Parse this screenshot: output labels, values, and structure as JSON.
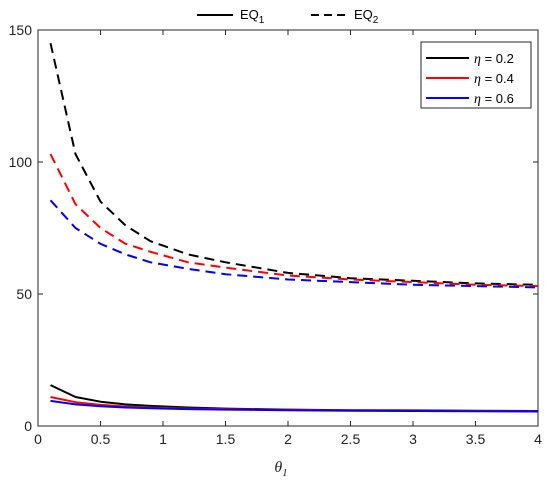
{
  "chart_data": {
    "type": "line",
    "title": "",
    "xlabel": "θ1",
    "xlabel_main": "θ",
    "xlabel_sub": "1",
    "ylabel": "",
    "xlim": [
      0,
      4
    ],
    "ylim": [
      0,
      150
    ],
    "xticks": [
      "0",
      "0.5",
      "1",
      "1.5",
      "2",
      "2.5",
      "3",
      "3.5",
      "4"
    ],
    "yticks": [
      "0",
      "50",
      "100",
      "150"
    ],
    "grid": false,
    "x": [
      0.1,
      0.3,
      0.5,
      0.7,
      0.9,
      1.2,
      1.5,
      2.0,
      2.5,
      3.0,
      3.5,
      4.0
    ],
    "line_styles": [
      {
        "name": "EQ1",
        "main": "EQ",
        "sub": "1",
        "dash": "solid"
      },
      {
        "name": "EQ2",
        "main": "EQ",
        "sub": "2",
        "dash": "dashed"
      }
    ],
    "line_style_legend_position": "top-center",
    "eta_legend": [
      {
        "prefix": "η",
        "label": " = 0.2",
        "color": "#000000"
      },
      {
        "prefix": "η",
        "label": " = 0.4",
        "color": "#ff0000"
      },
      {
        "prefix": "η",
        "label": " = 0.6",
        "color": "#0000ff"
      }
    ],
    "eta_legend_position": "top-right",
    "series": [
      {
        "name": "η = 0.2, EQ1",
        "color": "#000000",
        "dash": "solid",
        "values": [
          15.5,
          11.0,
          9.2,
          8.2,
          7.6,
          7.0,
          6.6,
          6.2,
          6.0,
          5.9,
          5.8,
          5.7
        ]
      },
      {
        "name": "η = 0.4, EQ1",
        "color": "#ff0000",
        "dash": "solid",
        "values": [
          11.0,
          9.0,
          8.0,
          7.4,
          7.0,
          6.6,
          6.4,
          6.1,
          5.9,
          5.8,
          5.7,
          5.6
        ]
      },
      {
        "name": "η = 0.6, EQ1",
        "color": "#0000ff",
        "dash": "solid",
        "values": [
          9.5,
          8.2,
          7.5,
          7.0,
          6.7,
          6.4,
          6.2,
          6.0,
          5.8,
          5.7,
          5.6,
          5.5
        ]
      },
      {
        "name": "η = 0.2, EQ2",
        "color": "#000000",
        "dash": "dashed",
        "values": [
          145,
          103,
          85,
          76,
          70,
          65,
          62,
          58,
          56,
          55,
          54,
          53.5
        ]
      },
      {
        "name": "η = 0.4, EQ2",
        "color": "#ff0000",
        "dash": "dashed",
        "values": [
          103,
          84,
          75,
          69,
          66,
          62,
          60,
          57,
          55.5,
          54.5,
          53.5,
          53
        ]
      },
      {
        "name": "η = 0.6, EQ2",
        "color": "#0000ff",
        "dash": "dashed",
        "values": [
          85.5,
          75,
          69,
          65,
          62,
          59.5,
          57.5,
          55.5,
          54.5,
          53.5,
          53,
          52.5
        ]
      }
    ]
  }
}
